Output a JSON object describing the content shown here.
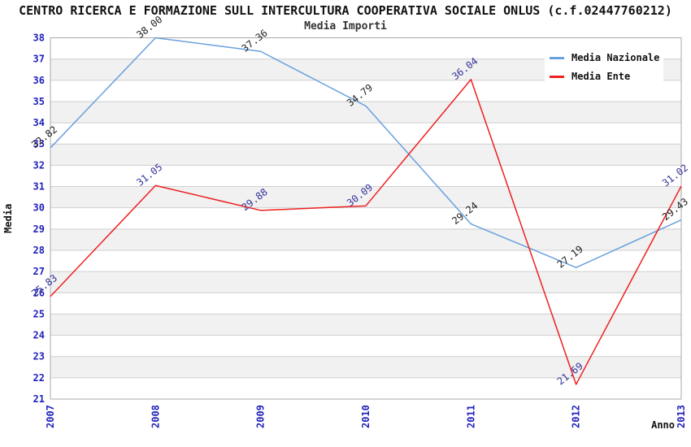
{
  "header": {
    "title": "CENTRO RICERCA E FORMAZIONE SULL INTERCULTURA COOPERATIVA SOCIALE ONLUS (c.f.02447760212)",
    "subtitle": "Media Importi"
  },
  "chart_data": {
    "type": "line",
    "title": "CENTRO RICERCA E FORMAZIONE SULL INTERCULTURA COOPERATIVA SOCIALE ONLUS (c.f.02447760212)",
    "subtitle": "Media Importi",
    "x": [
      2007,
      2008,
      2009,
      2010,
      2011,
      2012,
      2013
    ],
    "series": [
      {
        "name": "Media Nazionale",
        "color": "#69a1dd",
        "label_color": "#222222",
        "values": [
          32.82,
          38.0,
          37.36,
          34.79,
          29.24,
          27.19,
          29.43
        ]
      },
      {
        "name": "Media Ente",
        "color": "#ee2020",
        "label_color": "#333399",
        "values": [
          25.83,
          31.05,
          29.88,
          30.09,
          36.04,
          21.69,
          31.02
        ]
      }
    ],
    "xlabel": "Anno",
    "ylabel": "Media",
    "ylim": [
      21,
      38
    ],
    "ytick_step": 1,
    "grid": true,
    "banded_background": true,
    "legend_position": "top-right",
    "colors": {
      "band": "#f1f1f1",
      "grid": "#cfcfcf",
      "border": "#aaaaaa",
      "tick_label": "#2222bb",
      "axis_title": "#111111"
    }
  }
}
